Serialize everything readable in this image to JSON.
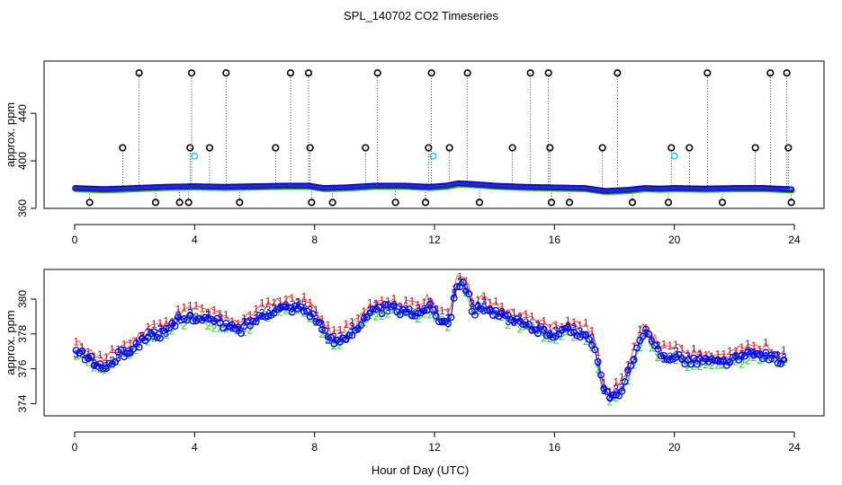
{
  "title": "SPL_140702  CO2 Timeseries",
  "xlabel": "Hour of Day (UTC)",
  "colors": {
    "black": "#000000",
    "blue": "#0000ee",
    "red": "#ee0000",
    "green": "#22cc22",
    "cyan": "#22cccc",
    "orange": "#ff9900"
  },
  "chart_data": [
    {
      "type": "scatter",
      "ylabel": "approx. ppm",
      "xlim": [
        0,
        24
      ],
      "ylim": [
        360,
        484
      ],
      "x_ticks": [
        "0",
        "4",
        "8",
        "12",
        "16",
        "20",
        "24"
      ],
      "y_ticks": [
        "360",
        "400",
        "440"
      ],
      "annotation": "dotted vertical lines join each black outlier marker to the baseline",
      "baseline": [
        [
          0,
          377
        ],
        [
          1,
          376
        ],
        [
          2,
          377
        ],
        [
          3,
          378
        ],
        [
          4,
          378.5
        ],
        [
          5,
          378
        ],
        [
          6,
          378.5
        ],
        [
          7,
          379
        ],
        [
          7.8,
          379
        ],
        [
          8.3,
          377
        ],
        [
          9,
          377.5
        ],
        [
          10,
          379
        ],
        [
          11,
          379
        ],
        [
          11.8,
          378
        ],
        [
          12.4,
          379
        ],
        [
          12.8,
          381
        ],
        [
          13.5,
          380
        ],
        [
          14,
          379
        ],
        [
          15,
          378
        ],
        [
          16,
          377.5
        ],
        [
          17,
          377
        ],
        [
          17.7,
          374.5
        ],
        [
          18.5,
          375.5
        ],
        [
          19,
          377
        ],
        [
          19.5,
          376.5
        ],
        [
          20,
          377
        ],
        [
          21,
          376.5
        ],
        [
          22,
          377
        ],
        [
          23,
          377
        ],
        [
          23.8,
          376
        ]
      ],
      "series": [
        {
          "name": "",
          "color": "black",
          "x": [
            0.5,
            1.6,
            2.15,
            2.7,
            3.5,
            3.8,
            3.85,
            3.9,
            4.5,
            5.05,
            5.5,
            6.7,
            7.2,
            7.8,
            7.85,
            7.9,
            8.6,
            9.7,
            10.1,
            10.7,
            11.7,
            11.8,
            11.9,
            12.5,
            13.1,
            13.5,
            14.6,
            15.2,
            15.8,
            15.85,
            15.9,
            16.5,
            17.6,
            18.1,
            18.6,
            19.8,
            19.9,
            20.5,
            21.1,
            21.6,
            22.7,
            23.2,
            23.75,
            23.8,
            23.9
          ],
          "y": [
            365,
            411,
            474,
            365,
            365,
            365,
            411,
            474,
            411,
            474,
            365,
            411,
            474,
            474,
            411,
            365,
            365,
            411,
            474,
            365,
            365,
            411,
            474,
            411,
            474,
            365,
            411,
            474,
            474,
            411,
            365,
            365,
            411,
            474,
            365,
            365,
            411,
            411,
            474,
            365,
            411,
            474,
            474,
            411,
            365
          ]
        },
        {
          "name": "",
          "color": "cyan",
          "x": [
            4.0,
            11.95,
            20.0
          ],
          "y": [
            404,
            404,
            404
          ]
        }
      ]
    },
    {
      "type": "scatter",
      "ylabel": "approx. ppm",
      "xlim": [
        0,
        24
      ],
      "ylim": [
        373.3,
        381.7
      ],
      "x_ticks": [
        "0",
        "4",
        "8",
        "12",
        "16",
        "20",
        "24"
      ],
      "y_ticks": [
        "374",
        "376",
        "378",
        "380"
      ],
      "annotation": "overlapping glyph series: 1 (red), 2 (green), 3 and o (blue), joined by lines",
      "profile": [
        [
          0,
          377
        ],
        [
          0.3,
          376.8
        ],
        [
          0.6,
          376.4
        ],
        [
          1,
          376
        ],
        [
          1.5,
          376.8
        ],
        [
          2,
          377.2
        ],
        [
          2.5,
          378
        ],
        [
          3,
          378
        ],
        [
          3.5,
          378.8
        ],
        [
          4,
          379
        ],
        [
          4.5,
          378.8
        ],
        [
          5,
          378.5
        ],
        [
          5.5,
          378.2
        ],
        [
          6,
          378.8
        ],
        [
          6.5,
          379.3
        ],
        [
          7,
          379.5
        ],
        [
          7.5,
          379.5
        ],
        [
          7.8,
          379.3
        ],
        [
          8.1,
          378.8
        ],
        [
          8.4,
          377.8
        ],
        [
          8.7,
          377.5
        ],
        [
          9,
          377.8
        ],
        [
          9.5,
          378.5
        ],
        [
          10,
          379.3
        ],
        [
          10.5,
          379.5
        ],
        [
          11,
          379.2
        ],
        [
          11.5,
          379.2
        ],
        [
          11.8,
          379.6
        ],
        [
          12.2,
          378.8
        ],
        [
          12.5,
          378.6
        ],
        [
          12.7,
          380.8
        ],
        [
          13,
          381
        ],
        [
          13.3,
          379.2
        ],
        [
          13.6,
          379.6
        ],
        [
          14,
          379.2
        ],
        [
          14.5,
          378.8
        ],
        [
          15,
          378.5
        ],
        [
          15.5,
          378.2
        ],
        [
          16,
          378
        ],
        [
          16.5,
          378.2
        ],
        [
          17,
          378
        ],
        [
          17.3,
          377.5
        ],
        [
          17.6,
          375
        ],
        [
          17.9,
          374.2
        ],
        [
          18.3,
          375
        ],
        [
          18.7,
          376.8
        ],
        [
          19,
          378.2
        ],
        [
          19.3,
          377.3
        ],
        [
          19.7,
          376.6
        ],
        [
          20,
          376.8
        ],
        [
          20.5,
          376.4
        ],
        [
          21,
          376.5
        ],
        [
          21.5,
          376.3
        ],
        [
          22,
          376.5
        ],
        [
          22.5,
          376.8
        ],
        [
          23,
          376.8
        ],
        [
          23.5,
          376.5
        ],
        [
          23.7,
          376.6
        ]
      ],
      "series": [
        {
          "name": "",
          "color": "red",
          "symbol": "1",
          "offset": 0.5
        },
        {
          "name": "",
          "color": "green",
          "symbol": "2",
          "offset": -0.15
        },
        {
          "name": "",
          "color": "blue",
          "symbol": "3",
          "offset": 0.1
        },
        {
          "name": "",
          "color": "blue",
          "symbol": "o",
          "offset": 0
        }
      ]
    }
  ]
}
